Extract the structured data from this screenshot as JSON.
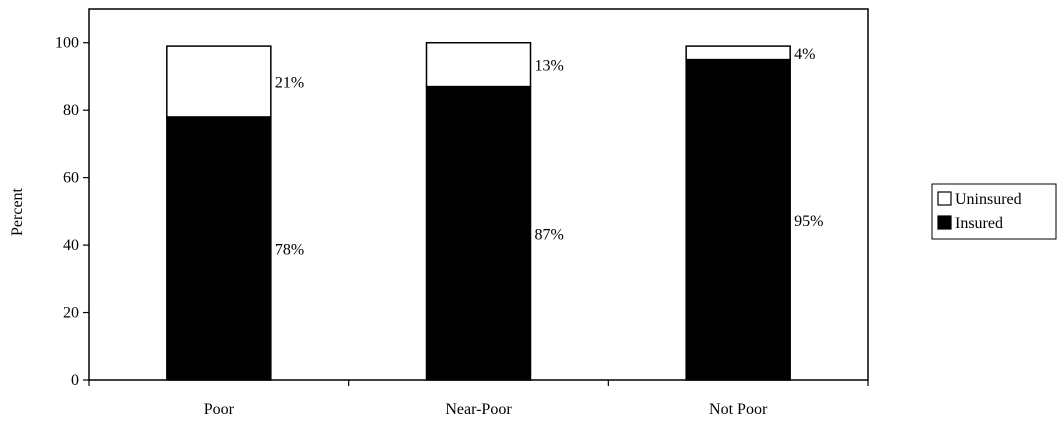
{
  "chart_data": {
    "type": "bar",
    "stacked": true,
    "categories": [
      "Poor",
      "Near-Poor",
      "Not Poor"
    ],
    "series": [
      {
        "name": "Insured",
        "values": [
          78,
          87,
          95
        ],
        "labels": [
          "78%",
          "87%",
          "95%"
        ],
        "color": "#000000"
      },
      {
        "name": "Uninsured",
        "values": [
          21,
          13,
          4
        ],
        "labels": [
          "21%",
          "13%",
          "4%"
        ],
        "color": "#ffffff"
      }
    ],
    "title": "",
    "xlabel": "",
    "ylabel": "Percent",
    "ylim": [
      0,
      110
    ],
    "yticks": [
      0,
      20,
      40,
      60,
      80,
      100
    ],
    "grid": false,
    "legend": {
      "position": "right",
      "entries": [
        "Uninsured",
        "Insured"
      ]
    }
  }
}
